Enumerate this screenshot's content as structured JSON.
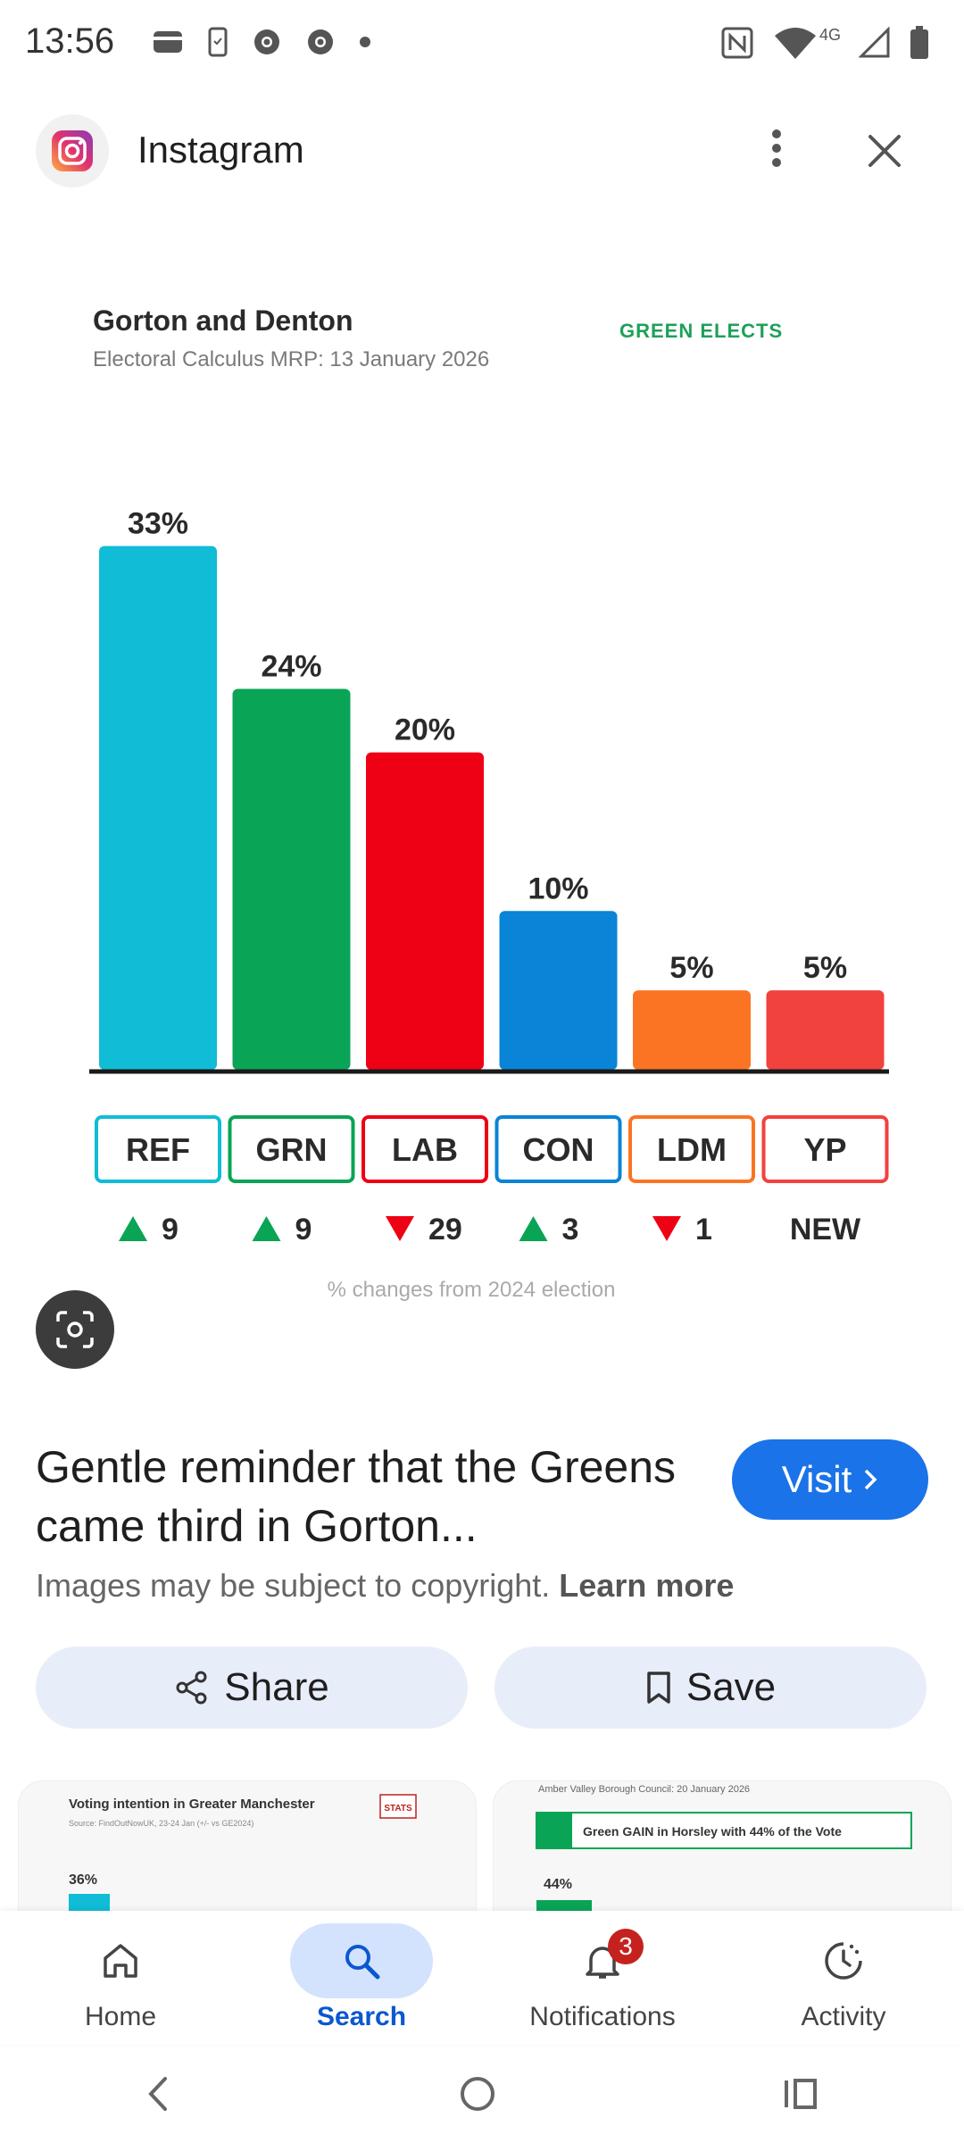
{
  "status_bar": {
    "time": "13:56",
    "network": "4G"
  },
  "header": {
    "app_name": "Instagram"
  },
  "chart_data": {
    "type": "bar",
    "title": "Gorton and Denton",
    "subtitle": "Electoral Calculus MRP: 13 January 2026",
    "brand": "GREEN ELECTS",
    "categories": [
      "REF",
      "GRN",
      "LAB",
      "CON",
      "LDM",
      "YP"
    ],
    "values": [
      33,
      24,
      20,
      10,
      5,
      5
    ],
    "value_labels": [
      "33%",
      "24%",
      "20%",
      "10%",
      "5%",
      "5%"
    ],
    "colors": [
      "#10bcd6",
      "#0aa456",
      "#ee0015",
      "#0a84d6",
      "#fb7424",
      "#f1423d"
    ],
    "changes": [
      {
        "direction": "up",
        "text": "9"
      },
      {
        "direction": "up",
        "text": "9"
      },
      {
        "direction": "down",
        "text": "29"
      },
      {
        "direction": "up",
        "text": "3"
      },
      {
        "direction": "down",
        "text": "1"
      },
      {
        "direction": "none",
        "text": "NEW"
      }
    ],
    "footnote": "% changes from 2024 election",
    "ylim": [
      0,
      35
    ]
  },
  "result": {
    "title": "Gentle reminder that the Greens came third in Gorton...",
    "visit_label": "Visit",
    "copyright_text": "Images may be subject to copyright.",
    "learn_more": "Learn more",
    "share_label": "Share",
    "save_label": "Save"
  },
  "related": [
    {
      "title": "Voting intention in Greater Manchester",
      "source": "Source: FindOutNowUK, 23-24 Jan (+/- vs GE2024)",
      "value": "36%",
      "logo": "STATS"
    },
    {
      "title": "Amber Valley Borough Council: 20 January 2026",
      "banner": "Green GAIN in Horsley with 44% of the Vote",
      "value": "44%"
    }
  ],
  "bottom_nav": {
    "items": [
      {
        "label": "Home",
        "icon": "home-icon"
      },
      {
        "label": "Search",
        "icon": "search-icon"
      },
      {
        "label": "Notifications",
        "icon": "bell-icon",
        "badge": "3"
      },
      {
        "label": "Activity",
        "icon": "activity-icon"
      }
    ]
  }
}
